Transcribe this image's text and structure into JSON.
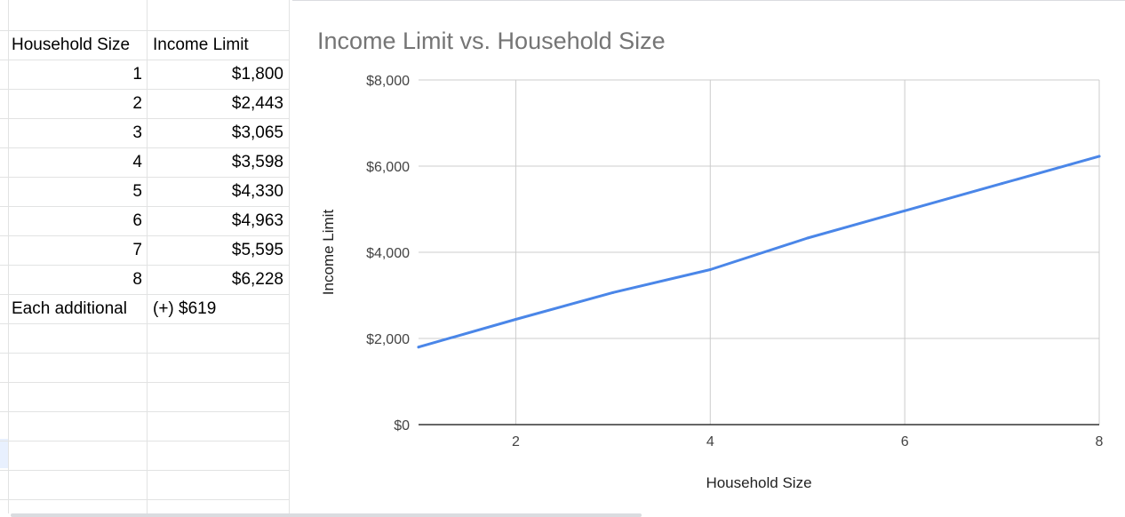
{
  "sheet": {
    "headers": [
      "Household Size",
      "Income Limit"
    ],
    "rows": [
      {
        "size": "1",
        "limit": "$1,800"
      },
      {
        "size": "2",
        "limit": "$2,443"
      },
      {
        "size": "3",
        "limit": "$3,065"
      },
      {
        "size": "4",
        "limit": "$3,598"
      },
      {
        "size": "5",
        "limit": "$4,330"
      },
      {
        "size": "6",
        "limit": "$4,963"
      },
      {
        "size": "7",
        "limit": "$5,595"
      },
      {
        "size": "8",
        "limit": "$6,228"
      }
    ],
    "footer": {
      "label": "Each additional",
      "value": "(+) $619"
    }
  },
  "chart_data": {
    "type": "line",
    "title": "Income Limit vs. Household Size",
    "xlabel": "Household Size",
    "ylabel": "Income Limit",
    "x": [
      1,
      2,
      3,
      4,
      5,
      6,
      7,
      8
    ],
    "series": [
      {
        "values": [
          1800,
          2443,
          3065,
          3598,
          4330,
          4963,
          5595,
          6228
        ],
        "color": "#4a86e8"
      }
    ],
    "xlim": [
      1,
      8
    ],
    "ylim": [
      0,
      8000
    ],
    "x_ticks": [
      2,
      4,
      6,
      8
    ],
    "x_tick_labels": [
      "2",
      "4",
      "6",
      "8"
    ],
    "y_ticks": [
      0,
      2000,
      4000,
      6000,
      8000
    ],
    "y_tick_labels": [
      "$0",
      "$2,000",
      "$4,000",
      "$6,000",
      "$8,000"
    ],
    "grid": true,
    "legend": "none"
  }
}
